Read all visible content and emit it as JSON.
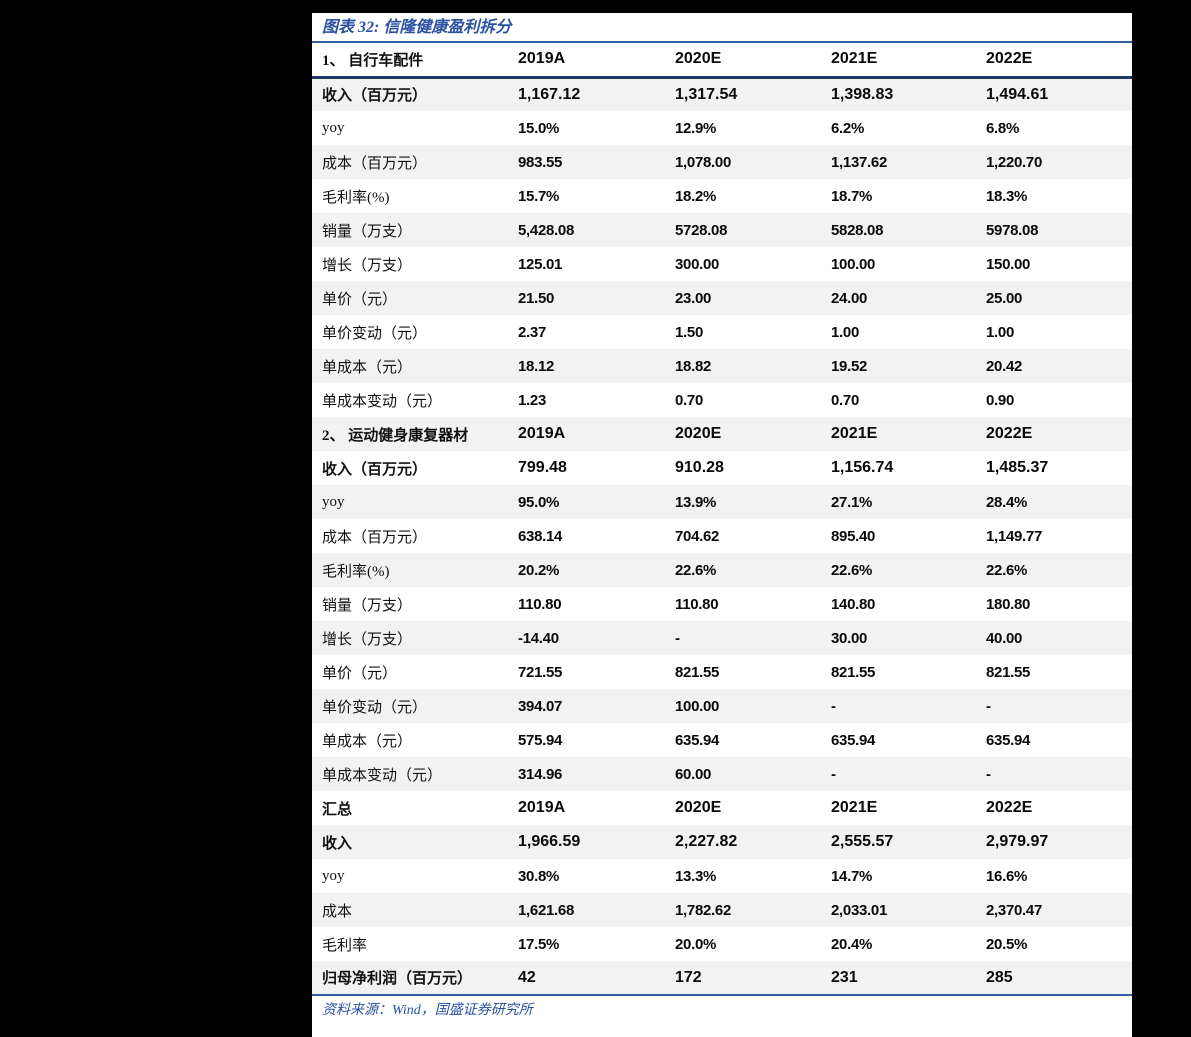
{
  "report": {
    "title": "图表 32: 信隆健康盈利拆分",
    "source": "资料来源：Wind，国盛证券研究所",
    "colors": {
      "page_bg": "#000000",
      "accent_text": "#2A52A0",
      "line_blue": "#3560A5",
      "line_navy": "#1F3864",
      "zebra": "#F2F2F2"
    }
  },
  "table": {
    "type": "table",
    "year_columns": [
      "2019A",
      "2020E",
      "2021E",
      "2022E"
    ],
    "sections": [
      {
        "header": "1、 自行车配件",
        "rows": [
          {
            "label": "收入（百万元）",
            "values": [
              "1,167.12",
              "1,317.54",
              "1,398.83",
              "1,494.61"
            ],
            "bold": true
          },
          {
            "label": "yoy",
            "values": [
              "15.0%",
              "12.9%",
              "6.2%",
              "6.8%"
            ],
            "bold": false
          },
          {
            "label": "成本（百万元）",
            "values": [
              "983.55",
              "1,078.00",
              "1,137.62",
              "1,220.70"
            ],
            "bold": false
          },
          {
            "label": "毛利率(%)",
            "values": [
              "15.7%",
              "18.2%",
              "18.7%",
              "18.3%"
            ],
            "bold": false
          },
          {
            "label": "销量（万支）",
            "values": [
              "5,428.08",
              "5728.08",
              "5828.08",
              "5978.08"
            ],
            "bold": false
          },
          {
            "label": "增长（万支）",
            "values": [
              "125.01",
              "300.00",
              "100.00",
              "150.00"
            ],
            "bold": false
          },
          {
            "label": "单价（元）",
            "values": [
              "21.50",
              "23.00",
              "24.00",
              "25.00"
            ],
            "bold": false
          },
          {
            "label": "单价变动（元）",
            "values": [
              "2.37",
              "1.50",
              "1.00",
              "1.00"
            ],
            "bold": false
          },
          {
            "label": "单成本（元）",
            "values": [
              "18.12",
              "18.82",
              "19.52",
              "20.42"
            ],
            "bold": false
          },
          {
            "label": "单成本变动（元）",
            "values": [
              "1.23",
              "0.70",
              "0.70",
              "0.90"
            ],
            "bold": false
          }
        ]
      },
      {
        "header": "2、 运动健身康复器材",
        "rows": [
          {
            "label": "收入（百万元）",
            "values": [
              "799.48",
              "910.28",
              "1,156.74",
              "1,485.37"
            ],
            "bold": true
          },
          {
            "label": "yoy",
            "values": [
              "95.0%",
              "13.9%",
              "27.1%",
              "28.4%"
            ],
            "bold": false
          },
          {
            "label": "成本（百万元）",
            "values": [
              "638.14",
              "704.62",
              "895.40",
              "1,149.77"
            ],
            "bold": false
          },
          {
            "label": "毛利率(%)",
            "values": [
              "20.2%",
              "22.6%",
              "22.6%",
              "22.6%"
            ],
            "bold": false
          },
          {
            "label": "销量（万支）",
            "values": [
              "110.80",
              "110.80",
              "140.80",
              "180.80"
            ],
            "bold": false
          },
          {
            "label": "增长（万支）",
            "values": [
              "-14.40",
              "-",
              "30.00",
              "40.00"
            ],
            "bold": false
          },
          {
            "label": "单价（元）",
            "values": [
              "721.55",
              "821.55",
              "821.55",
              "821.55"
            ],
            "bold": false
          },
          {
            "label": "单价变动（元）",
            "values": [
              "394.07",
              "100.00",
              "-",
              "-"
            ],
            "bold": false
          },
          {
            "label": "单成本（元）",
            "values": [
              "575.94",
              "635.94",
              "635.94",
              "635.94"
            ],
            "bold": false
          },
          {
            "label": "单成本变动（元）",
            "values": [
              "314.96",
              "60.00",
              "-",
              "-"
            ],
            "bold": false
          }
        ]
      },
      {
        "header": "汇总",
        "rows": [
          {
            "label": "收入",
            "values": [
              "1,966.59",
              "2,227.82",
              "2,555.57",
              "2,979.97"
            ],
            "bold": true
          },
          {
            "label": "yoy",
            "values": [
              "30.8%",
              "13.3%",
              "14.7%",
              "16.6%"
            ],
            "bold": false
          },
          {
            "label": "成本",
            "values": [
              "1,621.68",
              "1,782.62",
              "2,033.01",
              "2,370.47"
            ],
            "bold": false
          },
          {
            "label": "毛利率",
            "values": [
              "17.5%",
              "20.0%",
              "20.4%",
              "20.5%"
            ],
            "bold": false
          },
          {
            "label": "归母净利润（百万元）",
            "values": [
              "42",
              "172",
              "231",
              "285"
            ],
            "bold": true
          }
        ]
      }
    ]
  }
}
